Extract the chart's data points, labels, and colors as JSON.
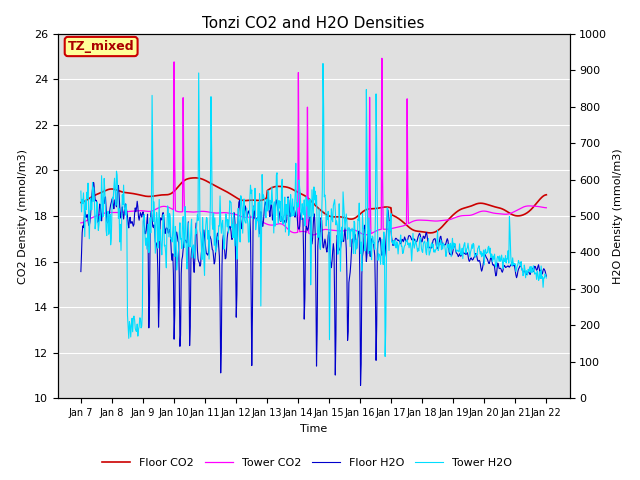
{
  "title": "Tonzi CO2 and H2O Densities",
  "xlabel": "Time",
  "ylabel_left": "CO2 Density (mmol/m3)",
  "ylabel_right": "H2O Density (mmol/m3)",
  "ylim_left": [
    10,
    26
  ],
  "ylim_right": [
    0,
    1000
  ],
  "xtick_labels": [
    "Jan 7",
    "Jan 8",
    "Jan 9",
    "Jan 10",
    "Jan 11",
    "Jan 12",
    "Jan 13",
    "Jan 14",
    "Jan 15",
    "Jan 16",
    "Jan 17",
    "Jan 18",
    "Jan 19",
    "Jan 20",
    "Jan 21",
    "Jan 22"
  ],
  "annotation_text": "TZ_mixed",
  "annotation_bg": "#FFFF99",
  "annotation_edge": "#CC0000",
  "bg_color": "#E0E0E0",
  "line_colors": {
    "floor_co2": "#CC0000",
    "tower_co2": "#FF00FF",
    "floor_h2o": "#0000CC",
    "tower_h2o": "#00DDFF"
  },
  "legend_labels": [
    "Floor CO2",
    "Tower CO2",
    "Floor H2O",
    "Tower H2O"
  ],
  "n_points": 720,
  "seed": 7
}
